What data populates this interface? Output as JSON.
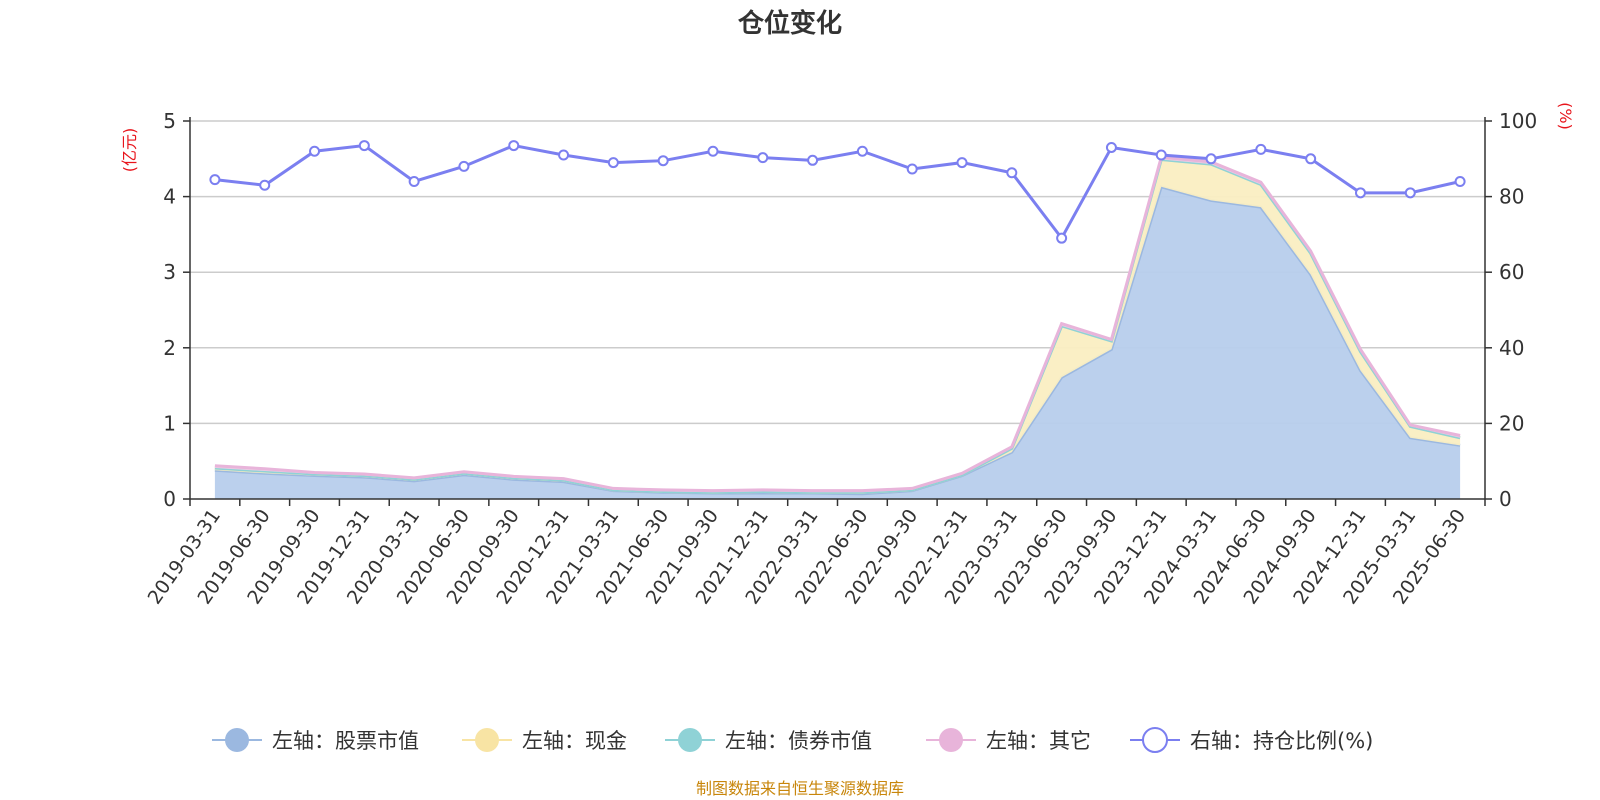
{
  "chart_data": {
    "type": "area",
    "title": "仓位变化",
    "left_axis": {
      "unit": "(亿元)",
      "ylim": [
        0,
        5
      ],
      "ticks": [
        0,
        1,
        2,
        3,
        4,
        5
      ]
    },
    "right_axis": {
      "unit": "(%)",
      "ylim": [
        0,
        100
      ],
      "ticks": [
        0,
        20,
        40,
        60,
        80,
        100
      ]
    },
    "grid": true,
    "legend_position": "bottom",
    "x": [
      "2019-03-31",
      "2019-06-30",
      "2019-09-30",
      "2019-12-31",
      "2020-03-31",
      "2020-06-30",
      "2020-09-30",
      "2020-12-31",
      "2021-03-31",
      "2021-06-30",
      "2021-09-30",
      "2021-12-31",
      "2022-03-31",
      "2022-06-30",
      "2022-09-30",
      "2022-12-31",
      "2023-03-31",
      "2023-06-30",
      "2023-09-30",
      "2023-12-31",
      "2024-03-31",
      "2024-06-30",
      "2024-09-30",
      "2024-12-31",
      "2025-03-31",
      "2025-06-30"
    ],
    "series": [
      {
        "name": "左轴：股票市值",
        "axis": "left",
        "color": "#9bb8e0",
        "fill": "#b7cdec",
        "values": [
          0.38,
          0.34,
          0.31,
          0.29,
          0.24,
          0.32,
          0.26,
          0.23,
          0.11,
          0.09,
          0.08,
          0.08,
          0.08,
          0.07,
          0.11,
          0.31,
          0.62,
          1.61,
          1.98,
          4.13,
          3.95,
          3.86,
          2.97,
          1.7,
          0.81,
          0.71
        ]
      },
      {
        "name": "左轴：现金",
        "axis": "left",
        "color": "#f8e4a4",
        "fill": "#faeec2",
        "values": [
          0.03,
          0.03,
          0.02,
          0.02,
          0.02,
          0.02,
          0.02,
          0.02,
          0.01,
          0.01,
          0.01,
          0.02,
          0.01,
          0.02,
          0.01,
          0.01,
          0.05,
          0.68,
          0.11,
          0.36,
          0.48,
          0.3,
          0.28,
          0.25,
          0.15,
          0.1
        ]
      },
      {
        "name": "左轴：债券市值",
        "axis": "left",
        "color": "#8fd2d6",
        "fill": "#bfe6e8",
        "values": [
          0,
          0,
          0,
          0,
          0,
          0,
          0,
          0,
          0,
          0,
          0,
          0,
          0,
          0,
          0,
          0,
          0,
          0,
          0,
          0,
          0,
          0,
          0,
          0,
          0,
          0
        ]
      },
      {
        "name": "左轴：其它",
        "axis": "left",
        "color": "#e8b4da",
        "fill": "#f0cfe6",
        "values": [
          0.03,
          0.03,
          0.02,
          0.02,
          0.02,
          0.02,
          0.02,
          0.02,
          0.02,
          0.02,
          0.02,
          0.02,
          0.02,
          0.02,
          0.02,
          0.02,
          0.02,
          0.03,
          0.02,
          0.03,
          0.03,
          0.03,
          0.03,
          0.03,
          0.02,
          0.03
        ]
      },
      {
        "name": "右轴：持仓比例(%)",
        "axis": "right",
        "type": "line",
        "color": "#7b7ff0",
        "values": [
          84.5,
          83,
          92,
          93.5,
          84,
          88,
          93.5,
          91,
          89,
          89.5,
          92,
          90.3,
          89.6,
          92,
          87.3,
          89,
          86.3,
          69,
          93,
          91,
          90,
          92.5,
          90,
          81,
          81,
          84
        ]
      }
    ],
    "source": "制图数据来自恒生聚源数据库"
  }
}
